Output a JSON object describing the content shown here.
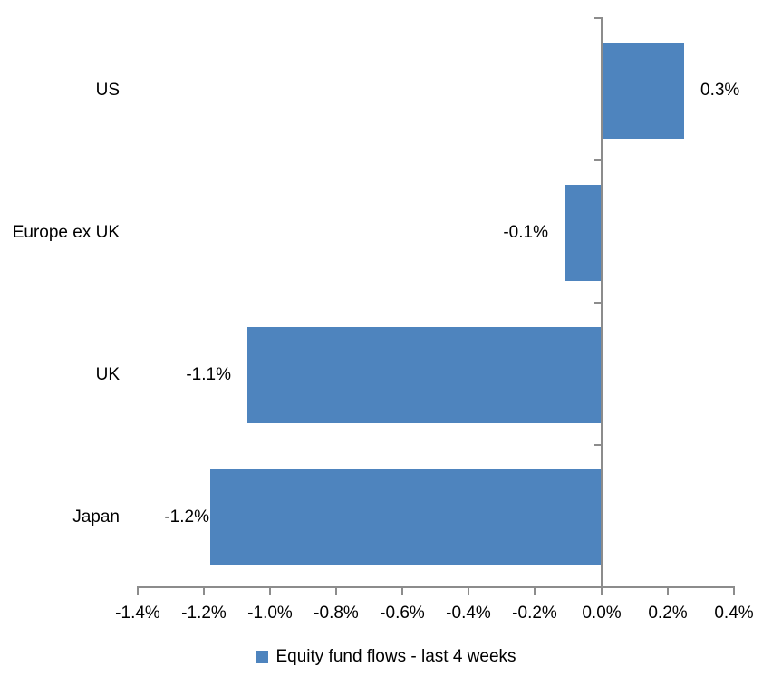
{
  "chart_data": {
    "type": "bar",
    "orientation": "horizontal",
    "title": "",
    "categories": [
      "US",
      "Europe ex UK",
      "UK",
      "Japan"
    ],
    "values": [
      0.25,
      -0.11,
      -1.07,
      -1.18
    ],
    "data_labels": [
      "0.3%",
      "-0.1%",
      "-1.1%",
      "-1.2%"
    ],
    "series_name": "Equity fund flows - last 4 weeks",
    "xlabel": "",
    "ylabel": "",
    "xlim": [
      -1.4,
      0.4
    ],
    "x_tick_values": [
      -1.4,
      -1.2,
      -1.0,
      -0.8,
      -0.6,
      -0.4,
      -0.2,
      0.0,
      0.2,
      0.4
    ],
    "x_tick_labels": [
      "-1.4%",
      "-1.2%",
      "-1.0%",
      "-0.8%",
      "-0.6%",
      "-0.4%",
      "-0.2%",
      "0.0%",
      "0.2%",
      "0.4%"
    ],
    "grid": false,
    "legend_position": "bottom",
    "bar_color": "#4E84BE",
    "axis_color": "#8C8C8C",
    "text_color": "#000000"
  },
  "legend": {
    "label": "Equity fund flows - last 4 weeks"
  }
}
